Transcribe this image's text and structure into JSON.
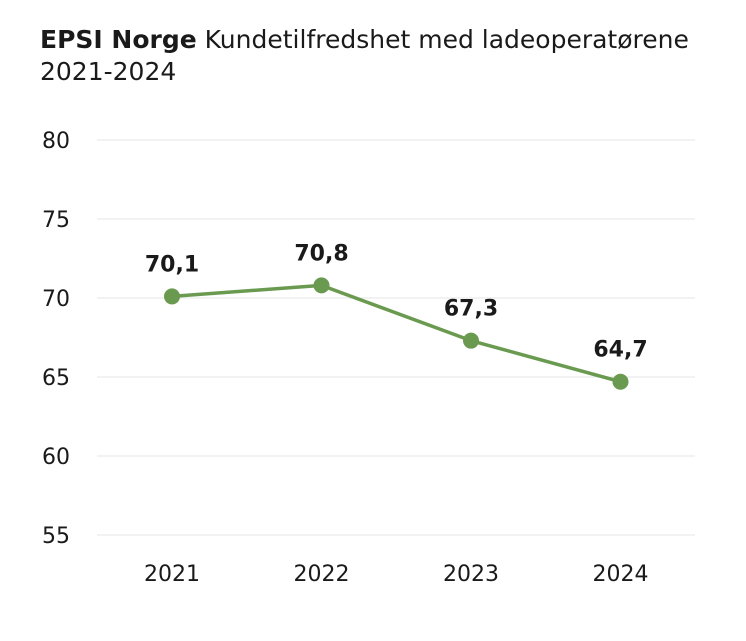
{
  "header": {
    "brand": "EPSI Norge",
    "title": "Kundetilfredshet med ladeoperatørene",
    "subtitle": "2021-2024"
  },
  "chart_data": {
    "type": "line",
    "title": "EPSI Norge Kundetilfredshet med ladeoperatørene",
    "subtitle": "2021-2024",
    "categories": [
      "2021",
      "2022",
      "2023",
      "2024"
    ],
    "series": [
      {
        "name": "Kundetilfredshet",
        "values": [
          70.1,
          70.8,
          67.3,
          64.7
        ],
        "labels": [
          "70,1",
          "70,8",
          "67,3",
          "64,7"
        ],
        "color": "#6a9a4f"
      }
    ],
    "xlabel": "",
    "ylabel": "",
    "ylim": [
      55,
      80
    ],
    "yticks": [
      "55",
      "60",
      "65",
      "70",
      "75",
      "80"
    ],
    "grid": true,
    "legend": "none"
  },
  "colors": {
    "line": "#6a9a4f",
    "grid": "#e6e6e6",
    "text": "#1a1a1a"
  }
}
